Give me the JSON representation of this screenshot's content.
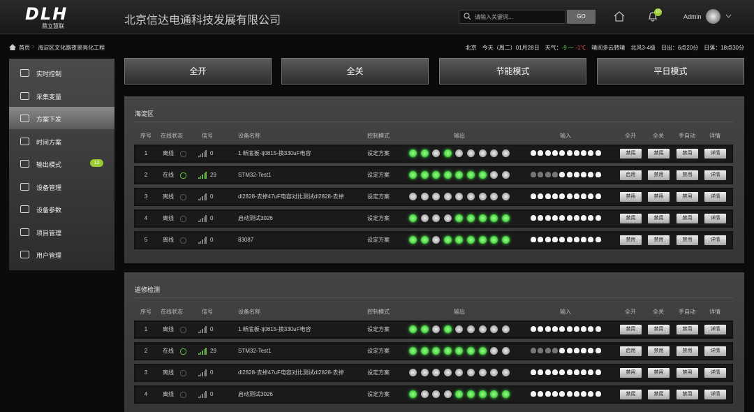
{
  "header": {
    "logo": "DLH",
    "logo_sub": "鼎立慧联",
    "company": "北京信达电通科技发展有限公司",
    "search_placeholder": "请输入关键词...",
    "search_button": "GO",
    "notification_count": "10",
    "user": "Admin"
  },
  "breadcrumb": [
    "首页",
    "海淀区文化路夜景亮化工程"
  ],
  "weather": {
    "city": "北京",
    "date": "今天（周二）01月28日",
    "label": "天气：",
    "temp_low": "-9 ～",
    "temp_high": "-1℃",
    "condition": "晴间多云转晴",
    "wind": "北风3-4级",
    "sunrise": "日出：6点20分",
    "sunset": "日落：18点30分"
  },
  "sidebar": {
    "active": 2,
    "items": [
      {
        "label": "实时控制"
      },
      {
        "label": "采集变量"
      },
      {
        "label": "方案下发"
      },
      {
        "label": "时间方案"
      },
      {
        "label": "输出模式",
        "badge": "12"
      },
      {
        "label": "设备管理"
      },
      {
        "label": "设备参数"
      },
      {
        "label": "项目管理"
      },
      {
        "label": "用户管理"
      }
    ]
  },
  "actions": [
    "全开",
    "全关",
    "节能模式",
    "平日模式"
  ],
  "columns": [
    "序号",
    "在线状态",
    "信号",
    "设备名称",
    "控制模式",
    "输出",
    "输入",
    "全开",
    "全关",
    "手自动",
    "详情"
  ],
  "panels": [
    {
      "title": "海淀区",
      "rows": [
        {
          "no": "1",
          "status": "离线",
          "signal": "0",
          "name": "1.新底板-tj0815-换330uF电容",
          "mode": "设定方案",
          "buttons": [
            "禁用",
            "禁用",
            "禁用",
            "详情"
          ]
        },
        {
          "no": "2",
          "status": "在线",
          "signal": "29",
          "name": "STM32-Test1",
          "mode": "设定方案",
          "buttons": [
            "启用",
            "禁用",
            "禁用",
            "详情"
          ]
        },
        {
          "no": "3",
          "status": "离线",
          "signal": "0",
          "name": "dl2828-去掉47uF电容对比测试dl2828-去掉",
          "mode": "设定方案",
          "buttons": [
            "禁用",
            "禁用",
            "禁用",
            "详情"
          ]
        },
        {
          "no": "4",
          "status": "离线",
          "signal": "0",
          "name": "启动测试3026",
          "mode": "设定方案",
          "buttons": [
            "禁用",
            "禁用",
            "禁用",
            "详情"
          ]
        },
        {
          "no": "5",
          "status": "离线",
          "signal": "0",
          "name": "83087",
          "mode": "设定方案",
          "buttons": [
            "禁用",
            "禁用",
            "禁用",
            "详情"
          ]
        }
      ]
    },
    {
      "title": "返修检测",
      "rows": [
        {
          "no": "1",
          "status": "离线",
          "signal": "0",
          "name": "1.新底板-tj0815-换330uF电容",
          "mode": "设定方案",
          "buttons": [
            "禁用",
            "禁用",
            "禁用",
            "详情"
          ]
        },
        {
          "no": "2",
          "status": "在线",
          "signal": "29",
          "name": "STM32-Test1",
          "mode": "设定方案",
          "buttons": [
            "启用",
            "禁用",
            "禁用",
            "详情"
          ]
        },
        {
          "no": "3",
          "status": "离线",
          "signal": "0",
          "name": "dl2828-去掉47uF电容对比测试dl2828-去掉",
          "mode": "设定方案",
          "buttons": [
            "禁用",
            "禁用",
            "禁用",
            "详情"
          ]
        },
        {
          "no": "4",
          "status": "离线",
          "signal": "0",
          "name": "启动测试3026",
          "mode": "设定方案",
          "buttons": [
            "禁用",
            "禁用",
            "禁用",
            "详情"
          ]
        }
      ]
    }
  ]
}
